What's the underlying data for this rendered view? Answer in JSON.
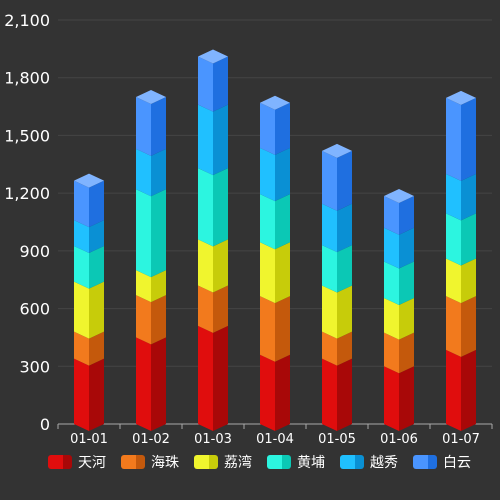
{
  "chart_data": {
    "type": "bar",
    "stacked": true,
    "style": "3d-cylinder",
    "categories": [
      "01-01",
      "01-02",
      "01-03",
      "01-04",
      "01-05",
      "01-06",
      "01-07"
    ],
    "ylim": [
      0,
      2100
    ],
    "yticks": [
      "0",
      "300",
      "600",
      "900",
      "1,200",
      "1,500",
      "1,800",
      "2,100"
    ],
    "ytick_values": [
      0,
      300,
      600,
      900,
      1200,
      1500,
      1800,
      2100
    ],
    "grid": true,
    "legend_position": "bottom",
    "series": [
      {
        "name": "天河",
        "color_front": "#e00d0d",
        "color_side": "#a80808",
        "color_top": "#ff4040",
        "values": [
          340,
          450,
          510,
          360,
          340,
          300,
          385
        ]
      },
      {
        "name": "海珠",
        "color_front": "#f27a1d",
        "color_side": "#c4590c",
        "color_top": "#ff9a40",
        "values": [
          140,
          220,
          210,
          305,
          140,
          175,
          280
        ]
      },
      {
        "name": "荔湾",
        "color_front": "#f0f52e",
        "color_side": "#c7cc0a",
        "color_top": "#ffff66",
        "values": [
          260,
          130,
          240,
          280,
          240,
          180,
          195
        ]
      },
      {
        "name": "黄埔",
        "color_front": "#2cf5e0",
        "color_side": "#0bc8b5",
        "color_top": "#66fff0",
        "values": [
          185,
          420,
          370,
          250,
          210,
          190,
          235
        ]
      },
      {
        "name": "越秀",
        "color_front": "#20c0ff",
        "color_side": "#0a90d4",
        "color_top": "#66d6ff",
        "values": [
          135,
          210,
          330,
          240,
          215,
          175,
          205
        ]
      },
      {
        "name": "白云",
        "color_front": "#4a95ff",
        "color_side": "#1f6fe0",
        "color_top": "#80b4ff",
        "values": [
          205,
          270,
          250,
          235,
          275,
          165,
          395
        ]
      }
    ]
  }
}
